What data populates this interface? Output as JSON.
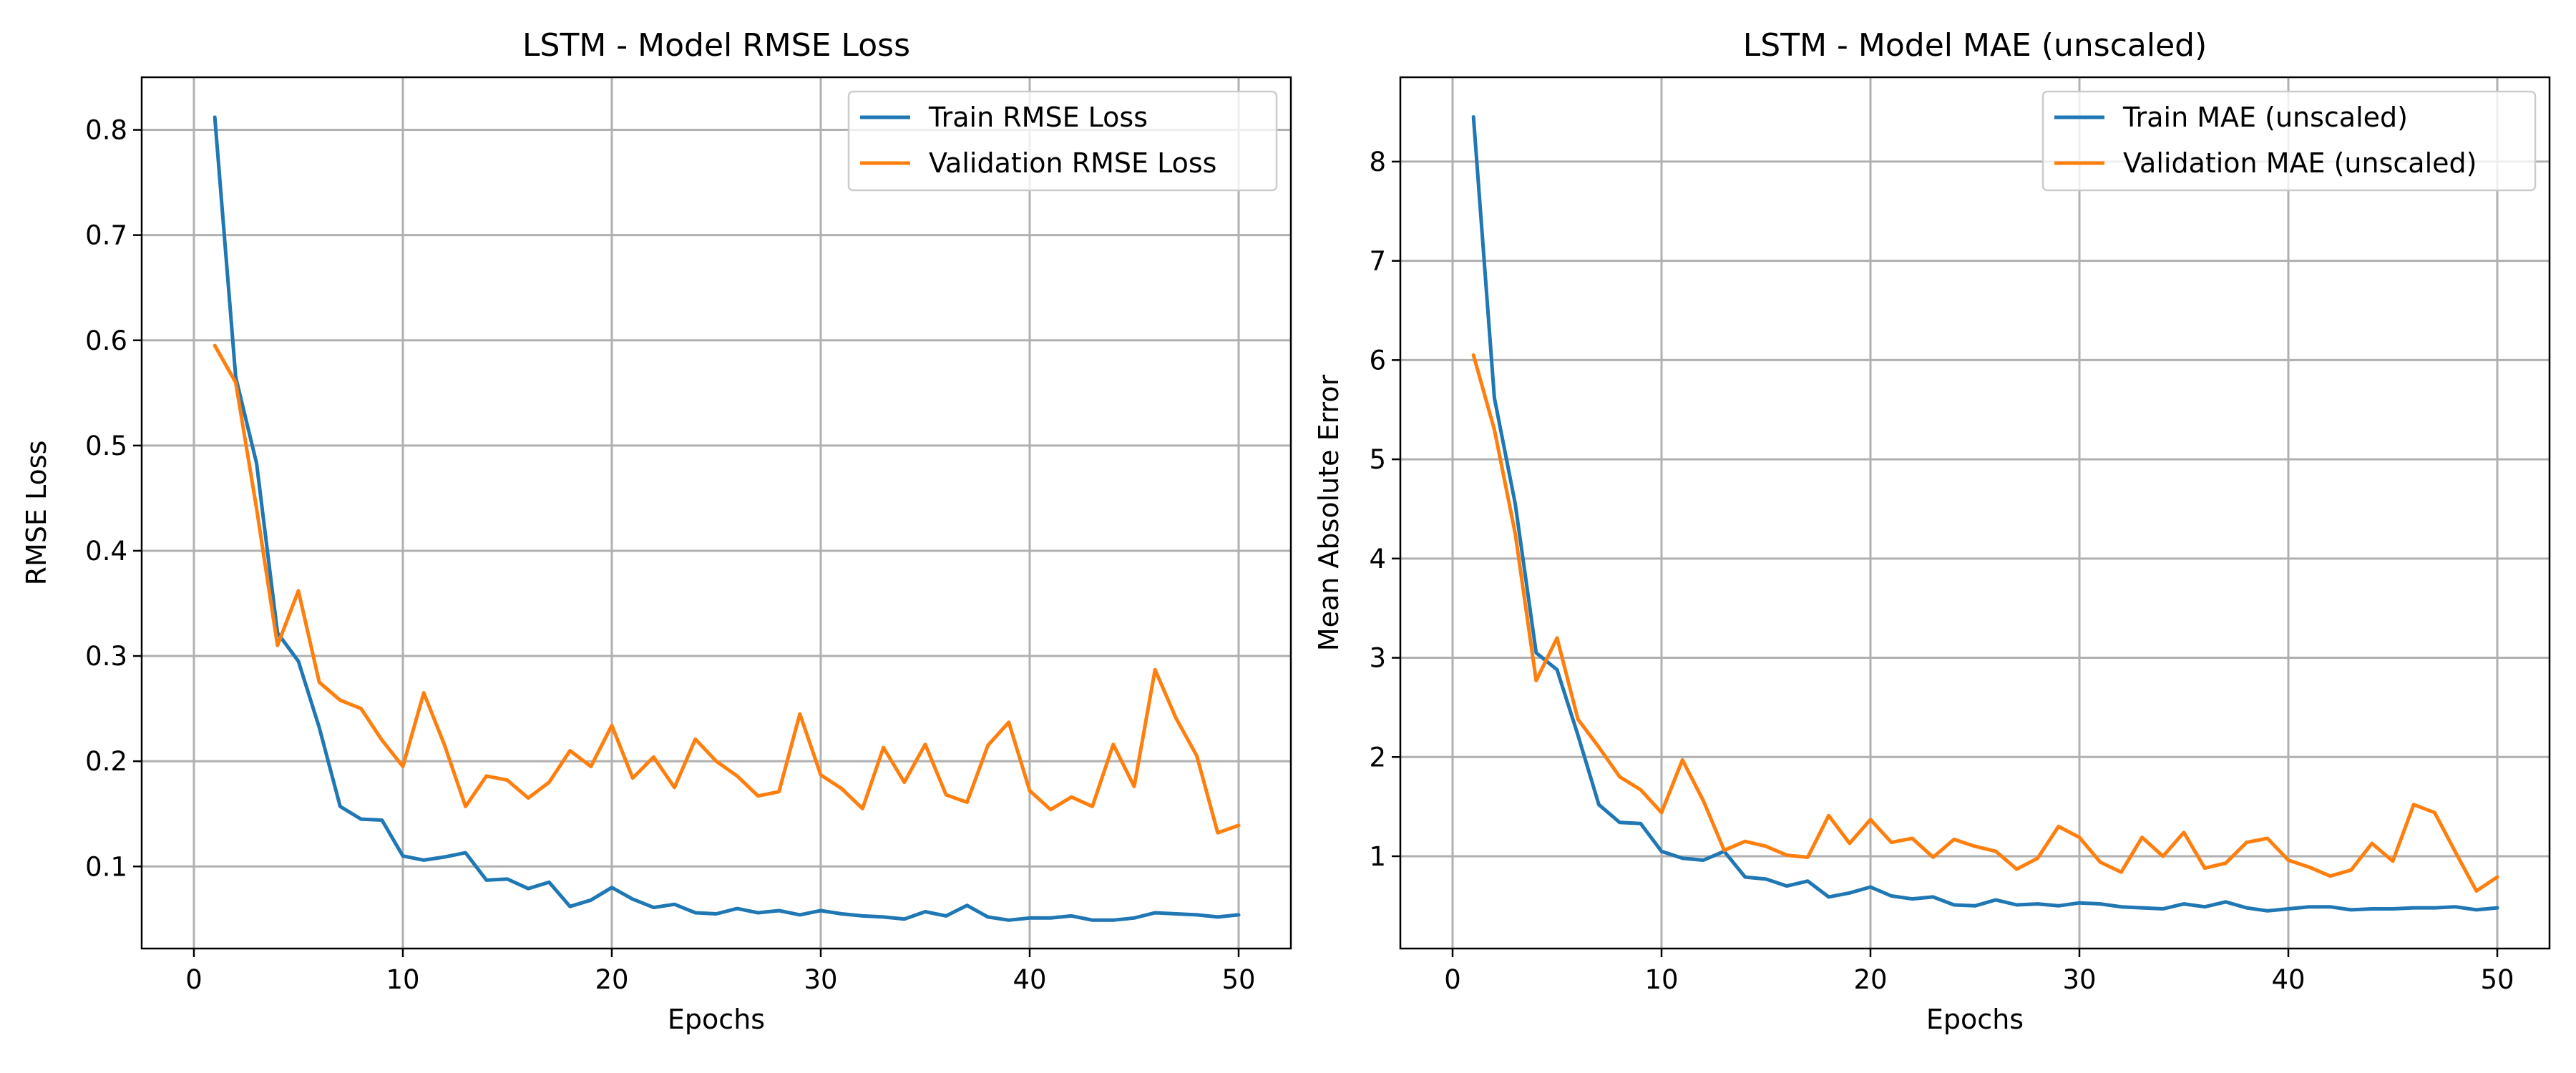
{
  "chart_data": [
    {
      "type": "line",
      "title": "LSTM - Model RMSE Loss",
      "xlabel": "Epochs",
      "ylabel": "RMSE Loss",
      "xlim": [
        -2.5,
        52.5
      ],
      "ylim": [
        0.022,
        0.85
      ],
      "xticks": [
        0,
        10,
        20,
        30,
        40,
        50
      ],
      "yticks": [
        0.1,
        0.2,
        0.3,
        0.4,
        0.5,
        0.6,
        0.7,
        0.8
      ],
      "ytick_labels": [
        "0.1",
        "0.2",
        "0.3",
        "0.4",
        "0.5",
        "0.6",
        "0.7",
        "0.8"
      ],
      "grid": true,
      "legend_position": "top-right",
      "x": [
        1,
        2,
        3,
        4,
        5,
        6,
        7,
        8,
        9,
        10,
        11,
        12,
        13,
        14,
        15,
        16,
        17,
        18,
        19,
        20,
        21,
        22,
        23,
        24,
        25,
        26,
        27,
        28,
        29,
        30,
        31,
        32,
        33,
        34,
        35,
        36,
        37,
        38,
        39,
        40,
        41,
        42,
        43,
        44,
        45,
        46,
        47,
        48,
        49,
        50
      ],
      "series": [
        {
          "name": "Train RMSE Loss",
          "color": "#1f77b4",
          "values": [
            0.812,
            0.565,
            0.483,
            0.322,
            0.295,
            0.232,
            0.157,
            0.145,
            0.144,
            0.11,
            0.106,
            0.109,
            0.113,
            0.087,
            0.088,
            0.079,
            0.085,
            0.062,
            0.068,
            0.08,
            0.069,
            0.061,
            0.064,
            0.056,
            0.055,
            0.06,
            0.056,
            0.058,
            0.054,
            0.058,
            0.055,
            0.053,
            0.052,
            0.05,
            0.057,
            0.053,
            0.063,
            0.052,
            0.049,
            0.051,
            0.051,
            0.053,
            0.049,
            0.049,
            0.051,
            0.056,
            0.055,
            0.054,
            0.052,
            0.054
          ]
        },
        {
          "name": "Validation RMSE Loss",
          "color": "#ff7f0e",
          "values": [
            0.595,
            0.56,
            0.44,
            0.31,
            0.362,
            0.275,
            0.258,
            0.25,
            0.22,
            0.195,
            0.265,
            0.215,
            0.157,
            0.186,
            0.182,
            0.165,
            0.18,
            0.21,
            0.195,
            0.234,
            0.184,
            0.204,
            0.175,
            0.221,
            0.2,
            0.186,
            0.167,
            0.171,
            0.245,
            0.187,
            0.174,
            0.155,
            0.213,
            0.18,
            0.216,
            0.168,
            0.161,
            0.215,
            0.237,
            0.172,
            0.154,
            0.166,
            0.157,
            0.216,
            0.176,
            0.287,
            0.241,
            0.205,
            0.132,
            0.139
          ]
        }
      ]
    },
    {
      "type": "line",
      "title": "LSTM - Model MAE (unscaled)",
      "xlabel": "Epochs",
      "ylabel": "Mean Absolute Error",
      "xlim": [
        -2.5,
        52.5
      ],
      "ylim": [
        0.07,
        8.85
      ],
      "xticks": [
        0,
        10,
        20,
        30,
        40,
        50
      ],
      "yticks": [
        1,
        2,
        3,
        4,
        5,
        6,
        7,
        8
      ],
      "ytick_labels": [
        "1",
        "2",
        "3",
        "4",
        "5",
        "6",
        "7",
        "8"
      ],
      "grid": true,
      "legend_position": "top-right",
      "x": [
        1,
        2,
        3,
        4,
        5,
        6,
        7,
        8,
        9,
        10,
        11,
        12,
        13,
        14,
        15,
        16,
        17,
        18,
        19,
        20,
        21,
        22,
        23,
        24,
        25,
        26,
        27,
        28,
        29,
        30,
        31,
        32,
        33,
        34,
        35,
        36,
        37,
        38,
        39,
        40,
        41,
        42,
        43,
        44,
        45,
        46,
        47,
        48,
        49,
        50
      ],
      "series": [
        {
          "name": "Train MAE (unscaled)",
          "color": "#1f77b4",
          "values": [
            8.45,
            5.62,
            4.55,
            3.05,
            2.88,
            2.22,
            1.52,
            1.34,
            1.33,
            1.05,
            0.98,
            0.96,
            1.05,
            0.79,
            0.77,
            0.7,
            0.75,
            0.59,
            0.63,
            0.69,
            0.6,
            0.57,
            0.59,
            0.51,
            0.5,
            0.56,
            0.51,
            0.52,
            0.5,
            0.53,
            0.52,
            0.49,
            0.48,
            0.47,
            0.52,
            0.49,
            0.54,
            0.48,
            0.45,
            0.47,
            0.49,
            0.49,
            0.46,
            0.47,
            0.47,
            0.48,
            0.48,
            0.49,
            0.46,
            0.48
          ]
        },
        {
          "name": "Validation MAE (unscaled)",
          "color": "#ff7f0e",
          "values": [
            6.05,
            5.3,
            4.25,
            2.77,
            3.2,
            2.38,
            2.1,
            1.8,
            1.67,
            1.44,
            1.97,
            1.56,
            1.06,
            1.15,
            1.1,
            1.01,
            0.99,
            1.41,
            1.13,
            1.37,
            1.14,
            1.18,
            0.99,
            1.17,
            1.1,
            1.05,
            0.87,
            0.98,
            1.3,
            1.19,
            0.94,
            0.84,
            1.19,
            1.0,
            1.24,
            0.88,
            0.93,
            1.14,
            1.18,
            0.96,
            0.89,
            0.8,
            0.86,
            1.13,
            0.95,
            1.52,
            1.44,
            1.04,
            0.65,
            0.79
          ]
        }
      ]
    }
  ]
}
